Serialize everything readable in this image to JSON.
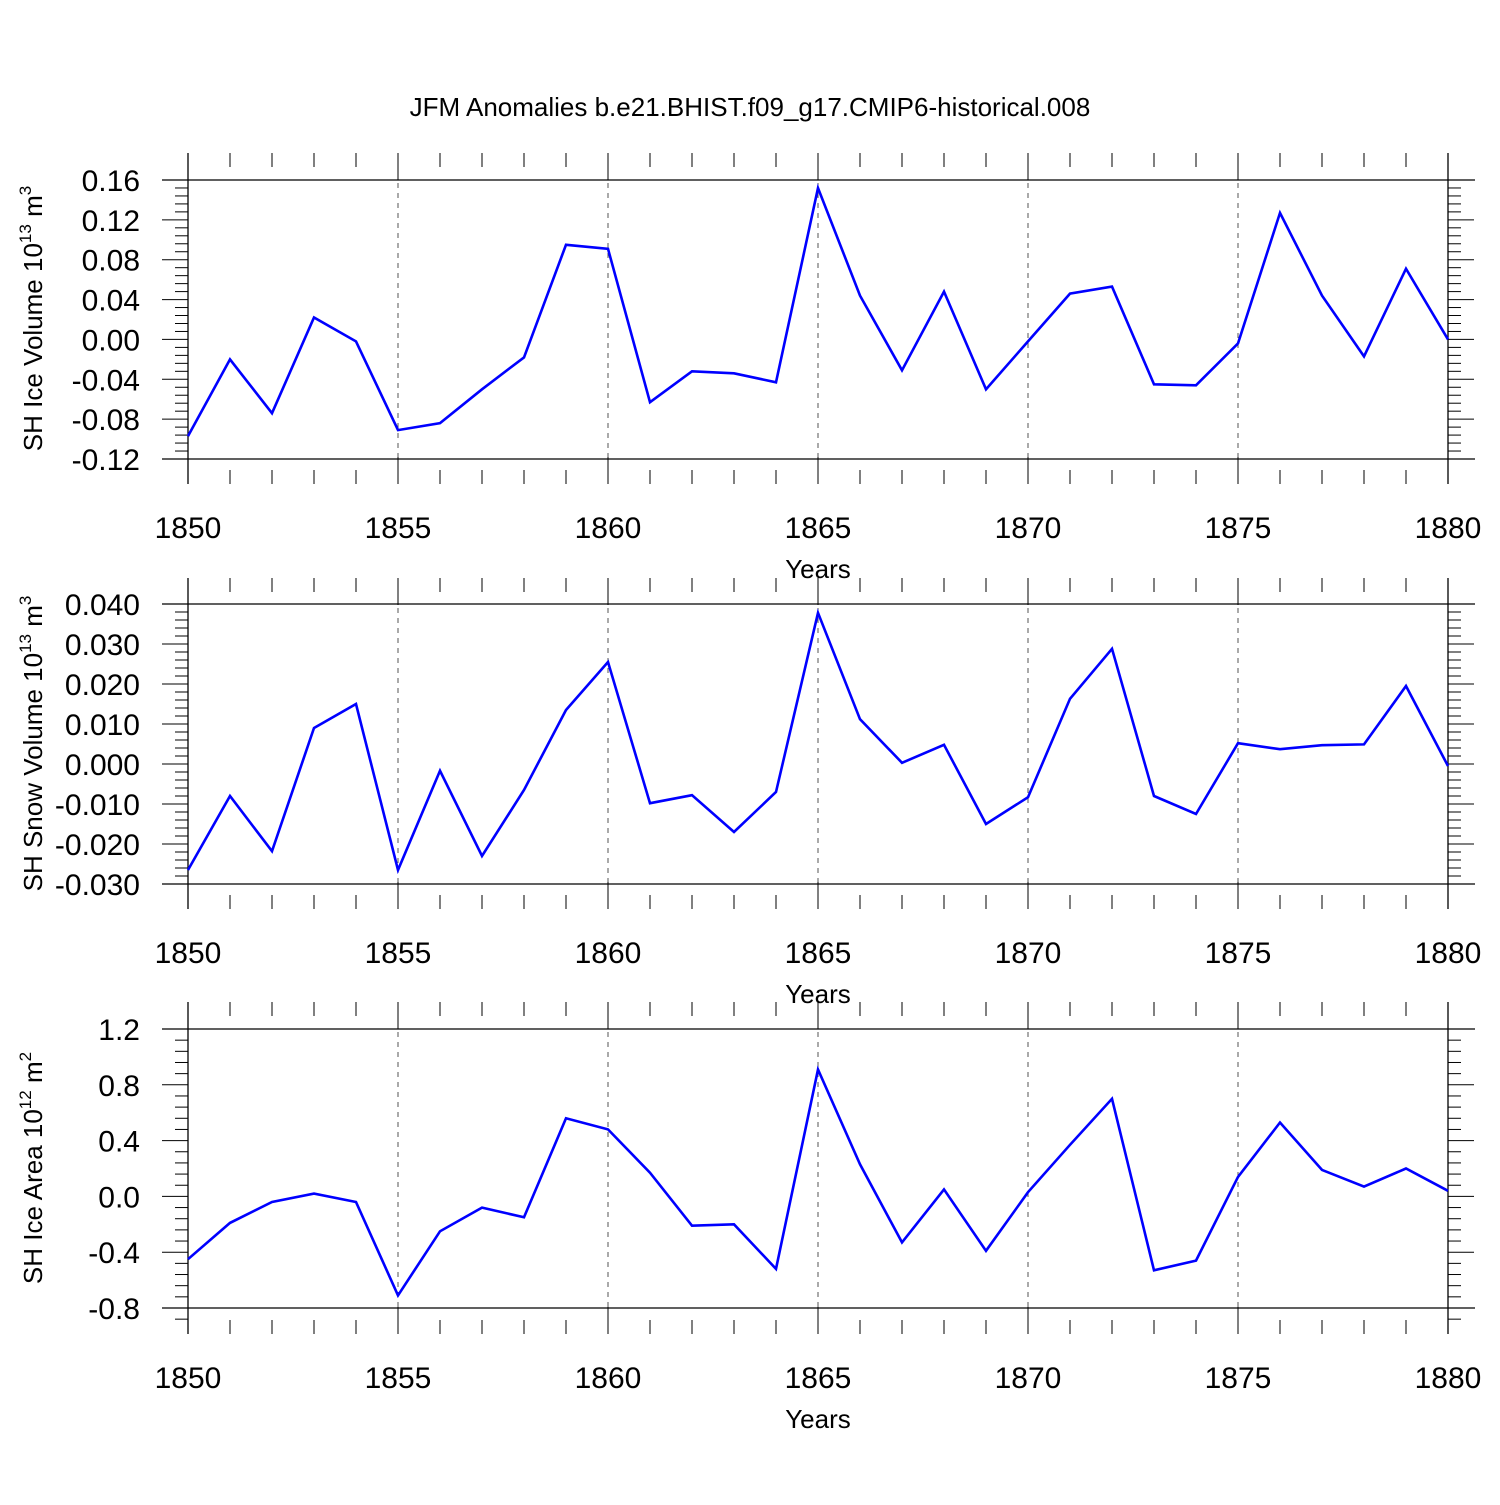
{
  "title": "JFM Anomalies b.e21.BHIST.f09_g17.CMIP6-historical.008",
  "colors": {
    "line": "#0000ff",
    "axis": "#000000",
    "grid": "#555555"
  },
  "chart_data": [
    {
      "type": "line",
      "ylabel": {
        "main": "SH Ice Volume 10",
        "exp": "13",
        "unit": " m",
        "unit_exp": "3"
      },
      "xlabel": "Years",
      "xlim": [
        1850,
        1880
      ],
      "ylim": [
        -0.12,
        0.16
      ],
      "yticks": [
        -0.12,
        -0.08,
        -0.04,
        0.0,
        0.04,
        0.08,
        0.12,
        0.16
      ],
      "ytick_labels": [
        "-0.12",
        "-0.08",
        "-0.04",
        "0.00",
        "0.04",
        "0.08",
        "0.12",
        "0.16"
      ],
      "xticks": [
        1850,
        1855,
        1860,
        1865,
        1870,
        1875,
        1880
      ],
      "xtick_labels": [
        "1850",
        "1855",
        "1860",
        "1865",
        "1870",
        "1875",
        "1880"
      ],
      "x": [
        1850,
        1851,
        1852,
        1853,
        1854,
        1855,
        1856,
        1857,
        1858,
        1859,
        1860,
        1861,
        1862,
        1863,
        1864,
        1865,
        1866,
        1867,
        1868,
        1869,
        1870,
        1871,
        1872,
        1873,
        1874,
        1875,
        1876,
        1877,
        1878,
        1879,
        1880
      ],
      "series": [
        {
          "name": "SH Ice Volume",
          "values": [
            -0.097,
            -0.02,
            -0.074,
            0.022,
            -0.002,
            -0.091,
            -0.084,
            -0.05,
            -0.018,
            0.095,
            0.091,
            -0.063,
            -0.032,
            -0.034,
            -0.043,
            0.152,
            0.044,
            -0.031,
            0.048,
            -0.05,
            -0.002,
            0.046,
            0.053,
            -0.045,
            -0.046,
            -0.004,
            0.127,
            0.044,
            -0.017,
            0.071,
            0.0
          ]
        }
      ]
    },
    {
      "type": "line",
      "ylabel": {
        "main": "SH Snow Volume 10",
        "exp": "13",
        "unit": " m",
        "unit_exp": "3"
      },
      "xlabel": "Years",
      "xlim": [
        1850,
        1880
      ],
      "ylim": [
        -0.03,
        0.04
      ],
      "yticks": [
        -0.03,
        -0.02,
        -0.01,
        0.0,
        0.01,
        0.02,
        0.03,
        0.04
      ],
      "ytick_labels": [
        "-0.030",
        "-0.020",
        "-0.010",
        "0.000",
        "0.010",
        "0.020",
        "0.030",
        "0.040"
      ],
      "xticks": [
        1850,
        1855,
        1860,
        1865,
        1870,
        1875,
        1880
      ],
      "xtick_labels": [
        "1850",
        "1855",
        "1860",
        "1865",
        "1870",
        "1875",
        "1880"
      ],
      "x": [
        1850,
        1851,
        1852,
        1853,
        1854,
        1855,
        1856,
        1857,
        1858,
        1859,
        1860,
        1861,
        1862,
        1863,
        1864,
        1865,
        1866,
        1867,
        1868,
        1869,
        1870,
        1871,
        1872,
        1873,
        1874,
        1875,
        1876,
        1877,
        1878,
        1879,
        1880
      ],
      "series": [
        {
          "name": "SH Snow Volume",
          "values": [
            -0.0265,
            -0.008,
            -0.0218,
            0.009,
            0.015,
            -0.0265,
            -0.0017,
            -0.023,
            -0.0065,
            0.0135,
            0.0255,
            -0.0098,
            -0.0078,
            -0.017,
            -0.007,
            0.0378,
            0.0112,
            0.0003,
            0.0048,
            -0.015,
            -0.0083,
            0.0163,
            0.0288,
            -0.008,
            -0.0125,
            0.0052,
            0.0037,
            0.0047,
            0.0049,
            0.0195,
            -0.0005
          ]
        }
      ]
    },
    {
      "type": "line",
      "ylabel": {
        "main": "SH Ice Area 10",
        "exp": "12",
        "unit": " m",
        "unit_exp": "2"
      },
      "xlabel": "Years",
      "xlim": [
        1850,
        1880
      ],
      "ylim": [
        -0.9,
        1.2
      ],
      "yticks": [
        -0.8,
        -0.4,
        0.0,
        0.4,
        0.8,
        1.2
      ],
      "ytick_labels": [
        "-0.8",
        "-0.4",
        "0.0",
        "0.4",
        "0.8",
        "1.2"
      ],
      "xticks": [
        1850,
        1855,
        1860,
        1865,
        1870,
        1875,
        1880
      ],
      "xtick_labels": [
        "1850",
        "1855",
        "1860",
        "1865",
        "1870",
        "1875",
        "1880"
      ],
      "x": [
        1850,
        1851,
        1852,
        1853,
        1854,
        1855,
        1856,
        1857,
        1858,
        1859,
        1860,
        1861,
        1862,
        1863,
        1864,
        1865,
        1866,
        1867,
        1868,
        1869,
        1870,
        1871,
        1872,
        1873,
        1874,
        1875,
        1876,
        1877,
        1878,
        1879,
        1880
      ],
      "series": [
        {
          "name": "SH Ice Area",
          "values": [
            -0.45,
            -0.19,
            -0.04,
            0.02,
            -0.04,
            -0.71,
            -0.25,
            -0.08,
            -0.15,
            0.56,
            0.48,
            0.17,
            -0.21,
            -0.2,
            -0.52,
            0.91,
            0.23,
            -0.33,
            0.05,
            -0.39,
            0.03,
            0.37,
            0.7,
            -0.53,
            -0.46,
            0.14,
            0.53,
            0.19,
            0.07,
            0.2,
            0.04
          ]
        }
      ]
    }
  ]
}
